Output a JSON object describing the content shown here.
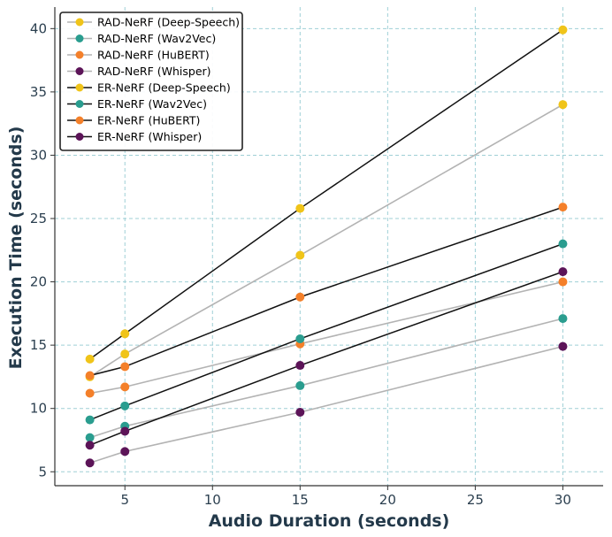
{
  "chart_data": {
    "type": "line",
    "title": "",
    "xlabel": "Audio Duration (seconds)",
    "ylabel": "Execution Time (seconds)",
    "xlim": [
      1,
      32.3
    ],
    "ylim": [
      3.9,
      41.7
    ],
    "xticks": [
      5,
      10,
      15,
      20,
      25,
      30
    ],
    "yticks": [
      5,
      10,
      15,
      20,
      25,
      30,
      35,
      40
    ],
    "grid": true,
    "legend_position": "top-left",
    "x": [
      3,
      5,
      15,
      30
    ],
    "series": [
      {
        "name": "RAD-NeRF (Deep-Speech)",
        "group": "RAD",
        "values": [
          12.5,
          14.3,
          22.1,
          34.0
        ]
      },
      {
        "name": "RAD-NeRF (Wav2Vec)",
        "group": "RAD",
        "values": [
          7.7,
          8.6,
          11.8,
          17.1
        ]
      },
      {
        "name": "RAD-NeRF (HuBERT)",
        "group": "RAD",
        "values": [
          11.2,
          11.7,
          15.1,
          20.0
        ]
      },
      {
        "name": "RAD-NeRF (Whisper)",
        "group": "RAD",
        "values": [
          5.7,
          6.6,
          9.7,
          14.9
        ]
      },
      {
        "name": "ER-NeRF (Deep-Speech)",
        "group": "ER",
        "values": [
          13.9,
          15.9,
          25.8,
          39.9
        ]
      },
      {
        "name": "ER-NeRF (Wav2Vec)",
        "group": "ER",
        "values": [
          9.1,
          10.2,
          15.5,
          23.0
        ]
      },
      {
        "name": "ER-NeRF (HuBERT)",
        "group": "ER",
        "values": [
          12.6,
          13.3,
          18.8,
          25.9
        ]
      },
      {
        "name": "ER-NeRF (Whisper)",
        "group": "ER",
        "values": [
          7.1,
          8.2,
          13.4,
          20.8
        ]
      }
    ]
  },
  "style": {
    "rad_line_color": "#b3b3b3",
    "er_line_color": "#111111",
    "marker_colors": [
      "#f0c419",
      "#2a9d8f",
      "#f4802a",
      "#5c1458",
      "#f0c419",
      "#2a9d8f",
      "#f4802a",
      "#5c1458"
    ],
    "axis_color": "#333333"
  }
}
